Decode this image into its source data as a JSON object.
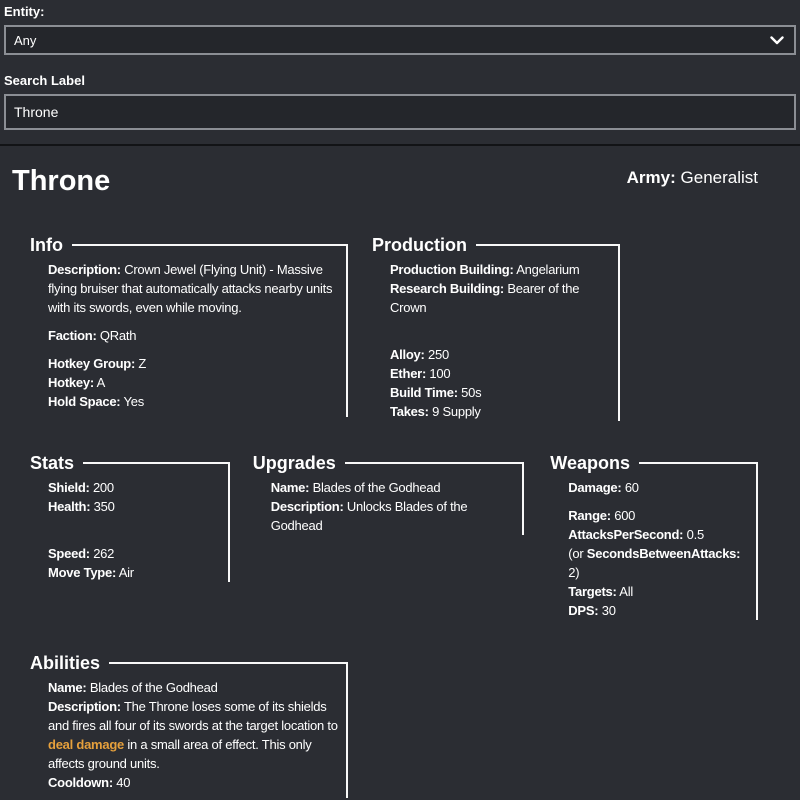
{
  "colors": {
    "highlight": "#e6a03c",
    "section_border": "#f8f8f8",
    "background": "#2b2d33",
    "control_background": "#24262b",
    "control_border": "#8b8e94"
  },
  "controls": {
    "entity_label": "Entity:",
    "entity_value": "Any",
    "dropdown_icon": "chevron-down",
    "search_label": "Search Label",
    "search_value": "Throne"
  },
  "header": {
    "title": "Throne",
    "army_label": "Army:",
    "army_value": "Generalist"
  },
  "section_rows": [
    [
      {
        "id": "info",
        "title": "Info",
        "paragraphs": [
          [
            [
              {
                "t": "Description:",
                "b": true
              },
              {
                "t": " Crown Jewel (Flying Unit) - Massive flying bruiser that automatically attacks nearby units with its swords, even while moving."
              }
            ]
          ],
          [
            [
              {
                "t": "Faction:",
                "b": true
              },
              {
                "t": " QRath"
              }
            ]
          ],
          [
            [
              {
                "t": "Hotkey Group:",
                "b": true
              },
              {
                "t": " Z"
              }
            ],
            [
              {
                "t": "Hotkey:",
                "b": true
              },
              {
                "t": " A"
              }
            ],
            [
              {
                "t": "Hold Space:",
                "b": true
              },
              {
                "t": " Yes"
              }
            ]
          ]
        ]
      },
      {
        "id": "production",
        "title": "Production",
        "paragraphs": [
          [
            [
              {
                "t": "Production Building:",
                "b": true
              },
              {
                "t": " Angelarium"
              }
            ],
            [
              {
                "t": "Research Building:",
                "b": true
              },
              {
                "t": " Bearer of the Crown"
              }
            ],
            [
              {
                "t": ""
              }
            ]
          ],
          [
            [
              {
                "t": "Alloy:",
                "b": true
              },
              {
                "t": " 250"
              }
            ],
            [
              {
                "t": "Ether:",
                "b": true
              },
              {
                "t": " 100"
              }
            ],
            [
              {
                "t": "Build Time:",
                "b": true
              },
              {
                "t": " 50s"
              }
            ],
            [
              {
                "t": "Takes:",
                "b": true
              },
              {
                "t": " 9 Supply"
              }
            ]
          ]
        ]
      }
    ],
    [
      {
        "id": "stats",
        "title": "Stats",
        "paragraphs": [
          [
            [
              {
                "t": "Shield:",
                "b": true
              },
              {
                "t": " 200"
              }
            ],
            [
              {
                "t": "Health:",
                "b": true
              },
              {
                "t": " 350"
              }
            ],
            [
              {
                "t": ""
              }
            ]
          ],
          [
            [
              {
                "t": "Speed:",
                "b": true
              },
              {
                "t": " 262"
              }
            ],
            [
              {
                "t": "Move Type:",
                "b": true
              },
              {
                "t": " Air"
              }
            ]
          ]
        ]
      },
      {
        "id": "upgrades",
        "title": "Upgrades",
        "paragraphs": [
          [
            [
              {
                "t": "Name:",
                "b": true
              },
              {
                "t": " Blades of the Godhead"
              }
            ],
            [
              {
                "t": "Description:",
                "b": true
              },
              {
                "t": " Unlocks Blades of the Godhead"
              }
            ]
          ]
        ]
      },
      {
        "id": "weapons",
        "title": "Weapons",
        "paragraphs": [
          [
            [
              {
                "t": "Damage:",
                "b": true
              },
              {
                "t": " 60"
              }
            ]
          ],
          [
            [
              {
                "t": "Range:",
                "b": true
              },
              {
                "t": " 600"
              }
            ],
            [
              {
                "t": "AttacksPerSecond:",
                "b": true
              },
              {
                "t": " 0.5"
              }
            ],
            [
              {
                "t": "(or "
              },
              {
                "t": "SecondsBetweenAttacks:",
                "b": true
              },
              {
                "t": " 2)"
              }
            ],
            [
              {
                "t": "Targets:",
                "b": true
              },
              {
                "t": " All"
              }
            ],
            [
              {
                "t": "DPS:",
                "b": true
              },
              {
                "t": " 30"
              }
            ]
          ]
        ]
      }
    ],
    [
      {
        "id": "abilities",
        "title": "Abilities",
        "paragraphs": [
          [
            [
              {
                "t": "Name:",
                "b": true
              },
              {
                "t": " Blades of the Godhead"
              }
            ],
            [
              {
                "t": "Description:",
                "b": true
              },
              {
                "t": " The Throne loses some of its shields and fires all four of its swords at the target location to "
              },
              {
                "t": "deal damage",
                "hl": true
              },
              {
                "t": " in a small area of effect. This only affects ground units."
              }
            ],
            [
              {
                "t": "Cooldown:",
                "b": true
              },
              {
                "t": " 40"
              }
            ]
          ]
        ]
      }
    ]
  ]
}
